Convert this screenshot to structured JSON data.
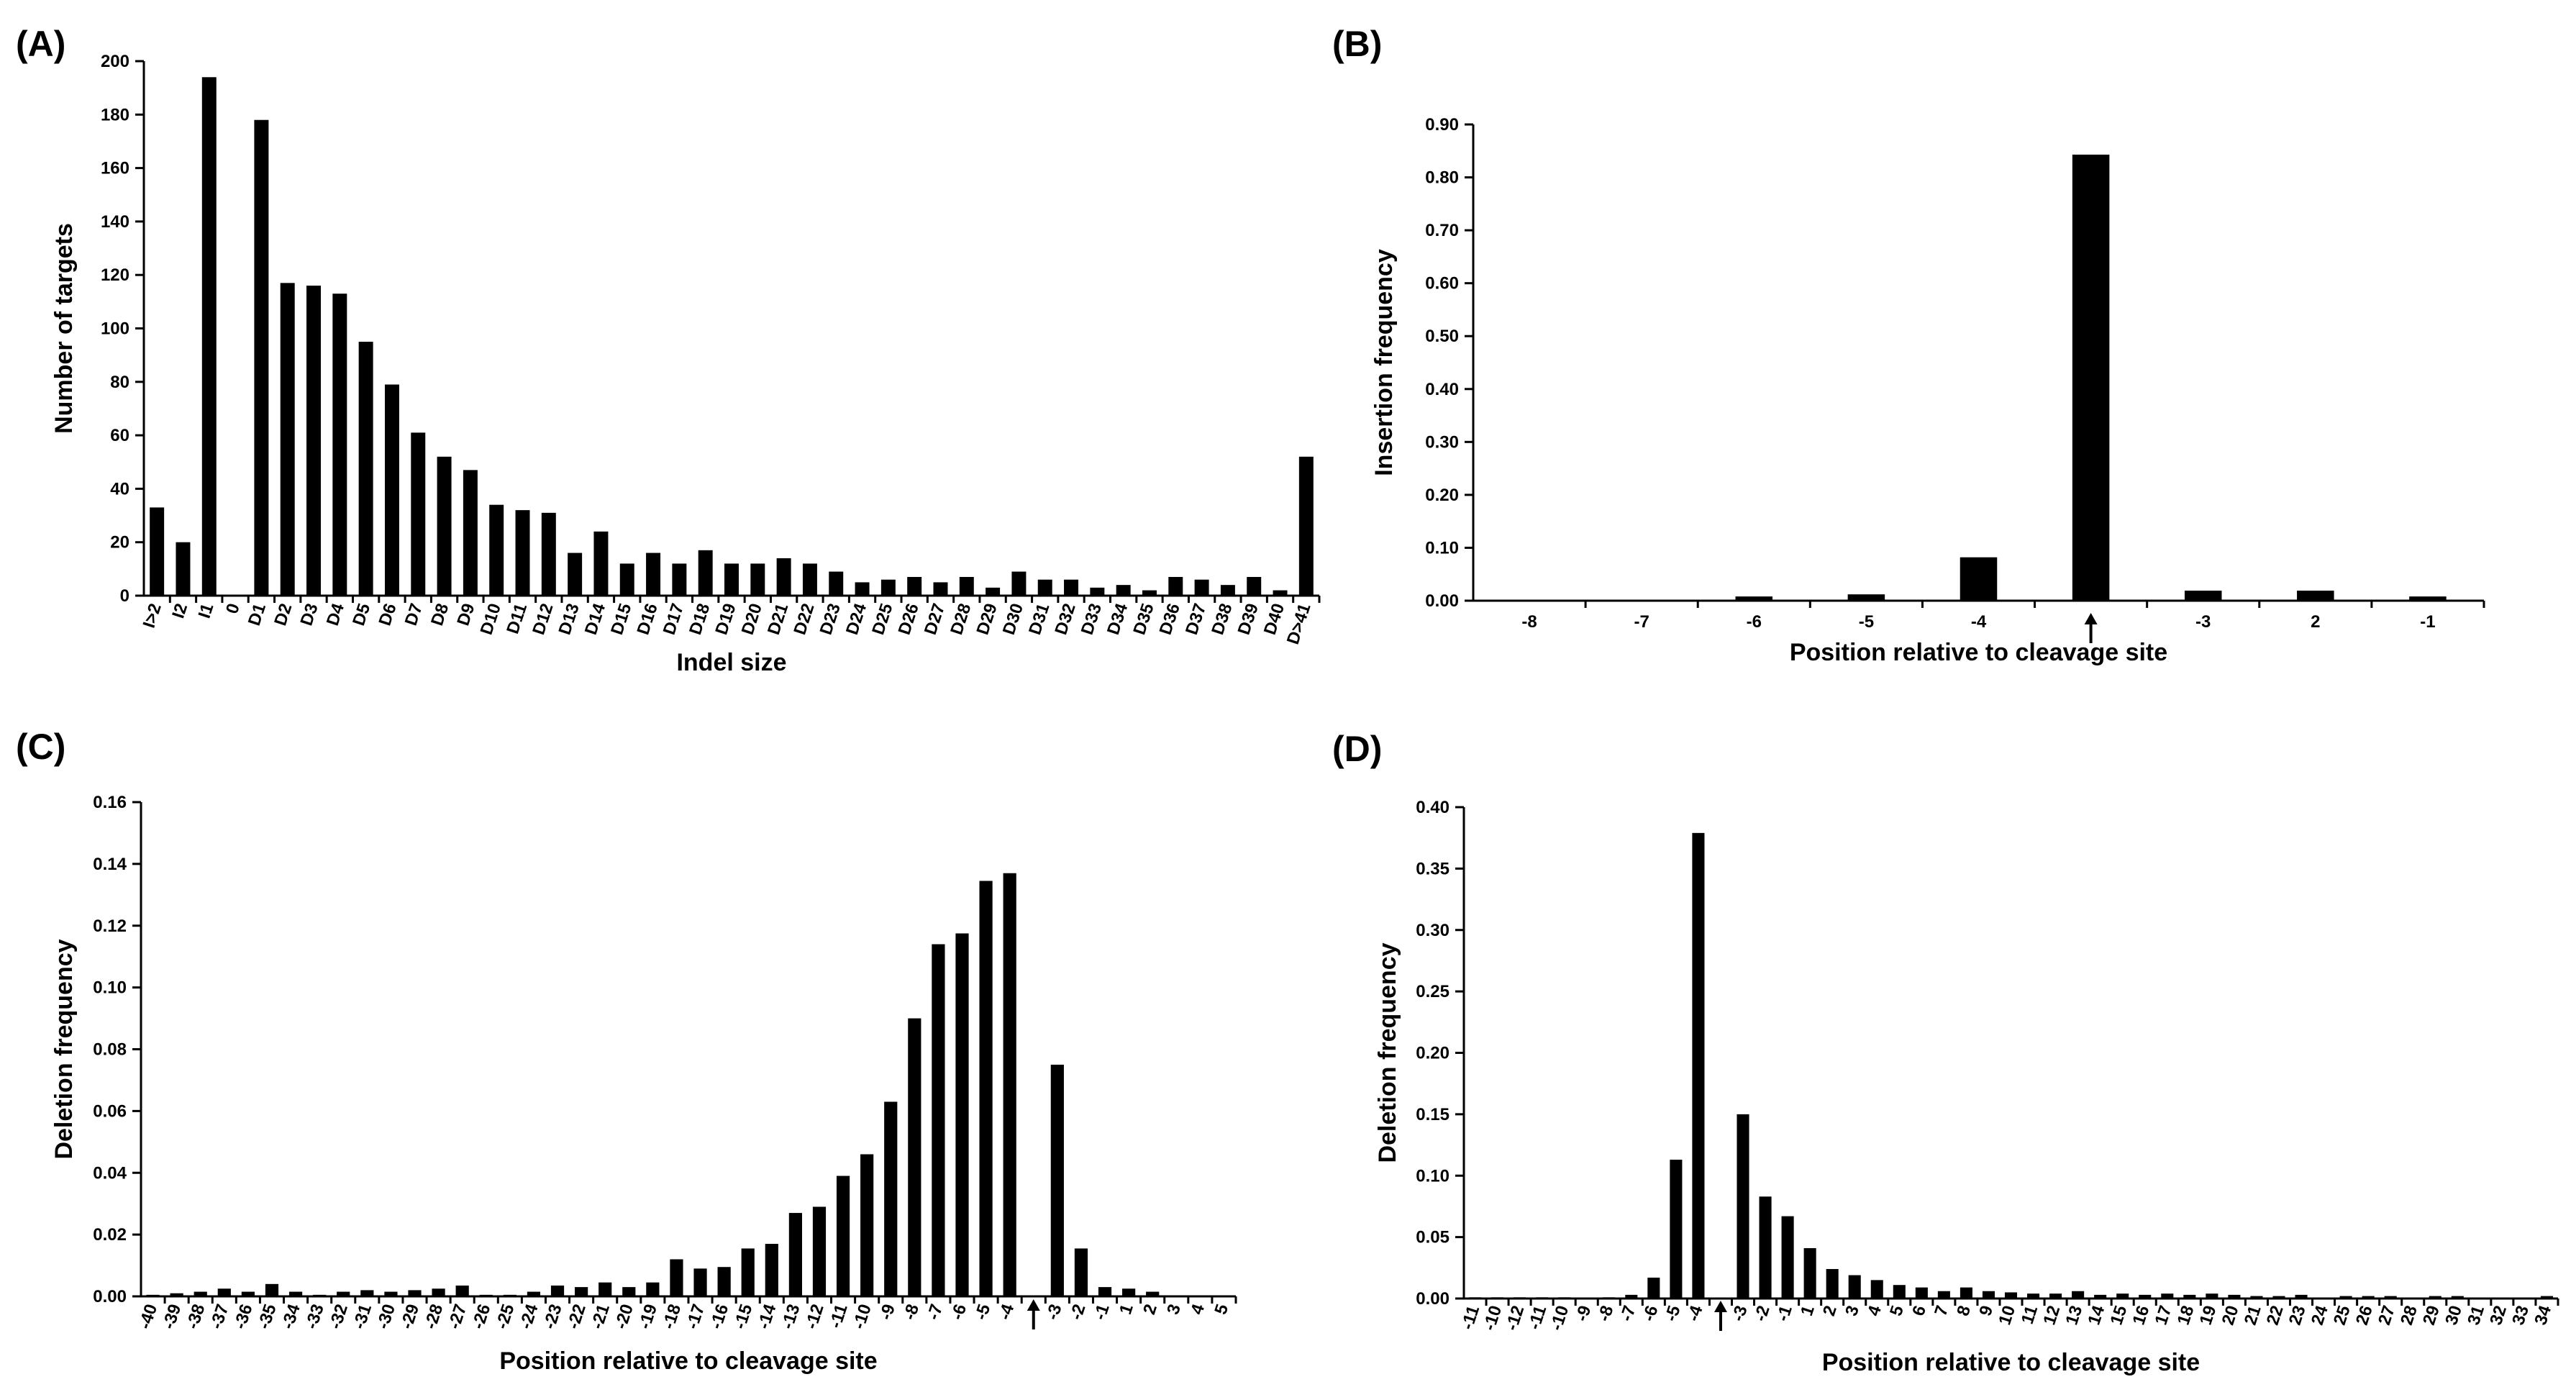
{
  "chart_data": [
    {
      "panel": "(A)",
      "type": "bar",
      "xlabel": "Indel size",
      "ylabel": "Number of  targets",
      "ylim": [
        0,
        200
      ],
      "yticks": [
        "0",
        "20",
        "40",
        "60",
        "80",
        "100",
        "120",
        "140",
        "160",
        "180",
        "200"
      ],
      "categories": [
        "I>2",
        "I2",
        "I1",
        "0",
        "D1",
        "D2",
        "D3",
        "D4",
        "D5",
        "D6",
        "D7",
        "D8",
        "D9",
        "D10",
        "D11",
        "D12",
        "D13",
        "D14",
        "D15",
        "D16",
        "D17",
        "D18",
        "D19",
        "D20",
        "D21",
        "D22",
        "D23",
        "D24",
        "D25",
        "D26",
        "D27",
        "D28",
        "D29",
        "D30",
        "D31",
        "D32",
        "D33",
        "D34",
        "D35",
        "D36",
        "D37",
        "D38",
        "D39",
        "D40",
        "D>41"
      ],
      "values": [
        33,
        20,
        194,
        0,
        178,
        117,
        116,
        113,
        95,
        79,
        61,
        52,
        47,
        34,
        32,
        31,
        16,
        24,
        12,
        16,
        12,
        17,
        12,
        12,
        14,
        12,
        9,
        5,
        6,
        7,
        5,
        7,
        3,
        9,
        6,
        6,
        3,
        4,
        2,
        7,
        6,
        4,
        7,
        2,
        52
      ]
    },
    {
      "panel": "(B)",
      "type": "bar",
      "xlabel": "Position relative to cleavage site",
      "ylabel": "Insertion frequency",
      "ylim": [
        0,
        0.9
      ],
      "yticks": [
        "0.00",
        "0.10",
        "0.20",
        "0.30",
        "0.40",
        "0.50",
        "0.60",
        "0.70",
        "0.80",
        "0.90"
      ],
      "categories": [
        "-8",
        "-7",
        "-6",
        "-5",
        "-4",
        "",
        "-3",
        "2",
        "-1"
      ],
      "values": [
        0.0,
        0.0,
        0.008,
        0.012,
        0.082,
        0.843,
        0.019,
        0.019,
        0.008
      ],
      "cleavage_marker_category": 5
    },
    {
      "panel": "(C)",
      "type": "bar",
      "xlabel": "Position relative to cleavage site",
      "ylabel": "Deletion frequency",
      "ylim": [
        0,
        0.16
      ],
      "yticks": [
        "0.00",
        "0.02",
        "0.04",
        "0.06",
        "0.08",
        "0.10",
        "0.12",
        "0.14",
        "0.16"
      ],
      "categories": [
        "-40",
        "-39",
        "-38",
        "-37",
        "-36",
        "-35",
        "-34",
        "-33",
        "-32",
        "-31",
        "-30",
        "-29",
        "-28",
        "-27",
        "-26",
        "-25",
        "-24",
        "-23",
        "-22",
        "-21",
        "-20",
        "-19",
        "-18",
        "-17",
        "-16",
        "-15",
        "-14",
        "-13",
        "-12",
        "-11",
        "-10",
        "-9",
        "-8",
        "-7",
        "-6",
        "-5",
        "-4",
        "",
        "-3",
        "-2",
        "-1",
        "1",
        "2",
        "3",
        "4",
        "5"
      ],
      "values": [
        0.0005,
        0.001,
        0.0015,
        0.0025,
        0.0015,
        0.004,
        0.0015,
        0.0005,
        0.0015,
        0.002,
        0.0015,
        0.002,
        0.0025,
        0.0035,
        0.0005,
        0.0005,
        0.0015,
        0.0035,
        0.003,
        0.0045,
        0.003,
        0.0045,
        0.012,
        0.009,
        0.0095,
        0.0155,
        0.017,
        0.027,
        0.029,
        0.039,
        0.046,
        0.063,
        0.09,
        0.114,
        0.1175,
        0.1345,
        0.137,
        0.0,
        0.075,
        0.0155,
        0.003,
        0.0025,
        0.0015,
        0.0,
        0.0,
        0.0
      ],
      "cleavage_marker_category": 37
    },
    {
      "panel": "(D)",
      "type": "bar",
      "xlabel": "Position relative to cleavage site",
      "ylabel": "Deletion frequency",
      "ylim": [
        0,
        0.4
      ],
      "yticks": [
        "0.00",
        "0.05",
        "0.10",
        "0.15",
        "0.20",
        "0.25",
        "0.30",
        "0.35",
        "0.40"
      ],
      "categories": [
        "-11",
        "-10",
        "-12",
        "-11",
        "-10",
        "-9",
        "-8",
        "-7",
        "-6",
        "-5",
        "-4",
        "",
        "-3",
        "-2",
        "-1",
        "1",
        "2",
        "3",
        "4",
        "5",
        "6",
        "7",
        "8",
        "9",
        "10",
        "11",
        "12",
        "13",
        "14",
        "15",
        "16",
        "17",
        "18",
        "19",
        "20",
        "21",
        "22",
        "23",
        "24",
        "25",
        "26",
        "27",
        "28",
        "29",
        "30",
        "31",
        "32",
        "33",
        "34"
      ],
      "values": [
        0.001,
        0.001,
        0.001,
        0.001,
        0.001,
        0.0,
        0.001,
        0.003,
        0.017,
        0.113,
        0.379,
        0.0,
        0.15,
        0.083,
        0.067,
        0.041,
        0.024,
        0.019,
        0.015,
        0.011,
        0.009,
        0.006,
        0.009,
        0.006,
        0.005,
        0.004,
        0.004,
        0.006,
        0.003,
        0.004,
        0.003,
        0.004,
        0.003,
        0.004,
        0.003,
        0.002,
        0.002,
        0.003,
        0.0,
        0.002,
        0.002,
        0.002,
        0.0,
        0.002,
        0.002,
        0.0,
        0.0,
        0.0,
        0.002
      ],
      "cleavage_marker_category": 11
    }
  ]
}
